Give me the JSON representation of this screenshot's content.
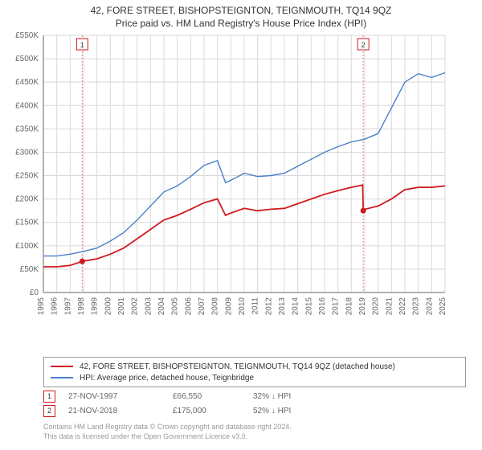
{
  "title_line1": "42, FORE STREET, BISHOPSTEIGNTON, TEIGNMOUTH, TQ14 9QZ",
  "title_line2": "Price paid vs. HM Land Registry's House Price Index (HPI)",
  "chart": {
    "type": "line",
    "background_color": "#ffffff",
    "grid_color": "#d9d9d9",
    "axis_color": "#666666",
    "tick_font_size": 10,
    "tick_color": "#666666",
    "yaxis": {
      "min": 0,
      "max": 550000,
      "step": 50000,
      "labels": [
        "£0",
        "£50K",
        "£100K",
        "£150K",
        "£200K",
        "£250K",
        "£300K",
        "£350K",
        "£400K",
        "£450K",
        "£500K",
        "£550K"
      ]
    },
    "xaxis": {
      "years": [
        1995,
        1996,
        1997,
        1998,
        1999,
        2000,
        2001,
        2002,
        2003,
        2004,
        2005,
        2006,
        2007,
        2008,
        2009,
        2010,
        2011,
        2012,
        2013,
        2014,
        2015,
        2016,
        2017,
        2018,
        2019,
        2020,
        2021,
        2022,
        2023,
        2024,
        2025
      ]
    },
    "series": [
      {
        "name": "property",
        "label": "42, FORE STREET, BISHOPSTEIGNTON, TEIGNMOUTH, TQ14 9QZ (detached house)",
        "color": "#d1191f",
        "line_width": 1.8,
        "data": [
          [
            1995,
            55000
          ],
          [
            1996,
            55000
          ],
          [
            1997,
            58000
          ],
          [
            1997.9,
            66550
          ],
          [
            1999,
            72000
          ],
          [
            2000,
            82000
          ],
          [
            2001,
            95000
          ],
          [
            2002,
            115000
          ],
          [
            2003,
            135000
          ],
          [
            2004,
            155000
          ],
          [
            2005,
            165000
          ],
          [
            2006,
            178000
          ],
          [
            2007,
            192000
          ],
          [
            2008,
            200000
          ],
          [
            2008.6,
            165000
          ],
          [
            2009,
            170000
          ],
          [
            2010,
            180000
          ],
          [
            2011,
            175000
          ],
          [
            2012,
            178000
          ],
          [
            2013,
            180000
          ],
          [
            2014,
            190000
          ],
          [
            2015,
            200000
          ],
          [
            2016,
            210000
          ],
          [
            2017,
            218000
          ],
          [
            2018,
            225000
          ],
          [
            2018.85,
            230000
          ],
          [
            2018.89,
            175000
          ],
          [
            2019,
            178000
          ],
          [
            2020,
            185000
          ],
          [
            2021,
            200000
          ],
          [
            2022,
            220000
          ],
          [
            2023,
            225000
          ],
          [
            2024,
            225000
          ],
          [
            2025,
            228000
          ]
        ]
      },
      {
        "name": "hpi",
        "label": "HPI: Average price, detached house, Teignbridge",
        "color": "#4a7fc9",
        "line_width": 1.4,
        "data": [
          [
            1995,
            78000
          ],
          [
            1996,
            78000
          ],
          [
            1997,
            82000
          ],
          [
            1998,
            88000
          ],
          [
            1999,
            95000
          ],
          [
            2000,
            110000
          ],
          [
            2001,
            128000
          ],
          [
            2002,
            155000
          ],
          [
            2003,
            185000
          ],
          [
            2004,
            215000
          ],
          [
            2005,
            228000
          ],
          [
            2006,
            248000
          ],
          [
            2007,
            272000
          ],
          [
            2008,
            282000
          ],
          [
            2008.6,
            235000
          ],
          [
            2009,
            240000
          ],
          [
            2010,
            255000
          ],
          [
            2011,
            248000
          ],
          [
            2012,
            250000
          ],
          [
            2013,
            255000
          ],
          [
            2014,
            270000
          ],
          [
            2015,
            285000
          ],
          [
            2016,
            300000
          ],
          [
            2017,
            312000
          ],
          [
            2018,
            322000
          ],
          [
            2019,
            328000
          ],
          [
            2020,
            340000
          ],
          [
            2021,
            395000
          ],
          [
            2022,
            450000
          ],
          [
            2023,
            468000
          ],
          [
            2024,
            460000
          ],
          [
            2025,
            470000
          ]
        ]
      }
    ],
    "sale_markers": [
      {
        "n": "1",
        "year": 1997.9,
        "price": 66550,
        "color": "#d1191f"
      },
      {
        "n": "2",
        "year": 2018.89,
        "price": 175000,
        "color": "#d1191f"
      }
    ],
    "vline_color": "#e37b7b",
    "vline_dash": "2,2"
  },
  "legend": {
    "rows": [
      {
        "color": "#d1191f",
        "label": "42, FORE STREET, BISHOPSTEIGNTON, TEIGNMOUTH, TQ14 9QZ (detached house)"
      },
      {
        "color": "#4a7fc9",
        "label": "HPI: Average price, detached house, Teignbridge"
      }
    ]
  },
  "sales": [
    {
      "n": "1",
      "date": "27-NOV-1997",
      "price": "£66,550",
      "pct": "32% ↓ HPI",
      "marker_color": "#d1191f"
    },
    {
      "n": "2",
      "date": "21-NOV-2018",
      "price": "£175,000",
      "pct": "52% ↓ HPI",
      "marker_color": "#d1191f"
    }
  ],
  "attribution": {
    "line1": "Contains HM Land Registry data © Crown copyright and database right 2024.",
    "line2": "This data is licensed under the Open Government Licence v3.0."
  }
}
